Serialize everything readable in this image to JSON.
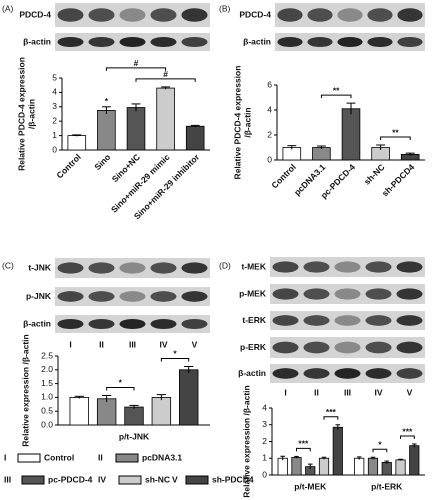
{
  "chart_data": [
    {
      "type": "bar",
      "panel_label": "(A)",
      "blot_labels": [
        "PDCD-4",
        "β-actin"
      ],
      "ylabel": [
        "Relative PDCD-4 expression",
        "/β-actin"
      ],
      "categories": [
        "Control",
        "Sino",
        "Sino+NC",
        "Sino+miR-29 mimic",
        "Sino+miR-29 inhibitor"
      ],
      "values": [
        1.0,
        2.75,
        2.95,
        4.3,
        1.65
      ],
      "errors": [
        0.05,
        0.25,
        0.25,
        0.08,
        0.06
      ],
      "colors": [
        "#ffffff",
        "#888888",
        "#555555",
        "#cccccc",
        "#444444"
      ],
      "ylim": [
        0,
        5
      ],
      "yticks": [
        0,
        1,
        2,
        3,
        4,
        5
      ],
      "annotations": [
        {
          "text": "*",
          "from": 1,
          "to": 1
        },
        {
          "text": "#",
          "from": 2,
          "to": 4
        },
        {
          "text": "#",
          "from": 1,
          "to": 3
        }
      ]
    },
    {
      "type": "bar",
      "panel_label": "(B)",
      "blot_labels": [
        "PDCD-4",
        "β-actin"
      ],
      "ylabel": [
        "Relative PDCD-4 expression",
        "/β-actin"
      ],
      "categories": [
        "Control",
        "pcDNA3.1",
        "pc-PDCD-4",
        "sh-NC",
        "sh-PDCD4"
      ],
      "values": [
        1.0,
        1.0,
        4.1,
        1.0,
        0.45
      ],
      "errors": [
        0.15,
        0.12,
        0.45,
        0.2,
        0.1
      ],
      "colors": [
        "#ffffff",
        "#888888",
        "#555555",
        "#cccccc",
        "#444444"
      ],
      "ylim": [
        0,
        6
      ],
      "yticks": [
        0,
        2,
        4,
        6
      ],
      "annotations": [
        {
          "text": "**",
          "from": 1,
          "to": 2
        },
        {
          "text": "**",
          "from": 3,
          "to": 4
        }
      ]
    },
    {
      "type": "bar",
      "panel_label": "(C)",
      "blot_labels": [
        "t-JNK",
        "p-JNK",
        "β-actin"
      ],
      "lane_labels": [
        "I",
        "II",
        "III",
        "IV",
        "V"
      ],
      "ylabel": [
        "Relative expression /β-actin"
      ],
      "categories": [
        "p/t-JNK"
      ],
      "series": [
        {
          "name": "Control",
          "color": "#ffffff",
          "values": [
            1.0
          ],
          "errors": [
            0.04
          ]
        },
        {
          "name": "pcDNA3.1",
          "color": "#888888",
          "values": [
            0.95
          ],
          "errors": [
            0.12
          ]
        },
        {
          "name": "pc-PDCD-4",
          "color": "#555555",
          "values": [
            0.65
          ],
          "errors": [
            0.06
          ]
        },
        {
          "name": "sh-NC",
          "color": "#cccccc",
          "values": [
            1.0
          ],
          "errors": [
            0.1
          ]
        },
        {
          "name": "sh-PDCD4",
          "color": "#444444",
          "values": [
            2.0
          ],
          "errors": [
            0.12
          ]
        }
      ],
      "legend_numerals": [
        "I",
        "II",
        "III",
        "IV",
        "V"
      ],
      "ylim": [
        0,
        2.5
      ],
      "yticks": [
        {
          "value": 0,
          "label": "0.0"
        },
        0.5,
        {
          "value": 1,
          "label": "1.0"
        },
        1.5,
        {
          "value": 2,
          "label": "2.0"
        },
        2.5
      ],
      "annotations": [
        {
          "text": "*",
          "category": 0,
          "from": 1,
          "to": 2
        },
        {
          "text": "*",
          "category": 0,
          "from": 3,
          "to": 4
        }
      ]
    },
    {
      "type": "bar",
      "panel_label": "(D)",
      "blot_labels": [
        "t-MEK",
        "p-MEK",
        "t-ERK",
        "p-ERK",
        "β-actin"
      ],
      "lane_labels": [
        "I",
        "II",
        "III",
        "IV",
        "V"
      ],
      "ylabel": [
        "Relative expression /β-actin"
      ],
      "categories": [
        "p/t-MEK",
        "p/t-ERK"
      ],
      "series": [
        {
          "color": "#ffffff",
          "values": [
            1.0,
            1.0
          ],
          "errors": [
            0.12,
            0.08
          ]
        },
        {
          "color": "#888888",
          "values": [
            1.05,
            1.0
          ],
          "errors": [
            0.06,
            0.06
          ]
        },
        {
          "color": "#555555",
          "values": [
            0.5,
            0.75
          ],
          "errors": [
            0.15,
            0.08
          ]
        },
        {
          "color": "#cccccc",
          "values": [
            1.0,
            0.9
          ],
          "errors": [
            0.06,
            0.04
          ]
        },
        {
          "color": "#444444",
          "values": [
            2.85,
            1.75
          ],
          "errors": [
            0.15,
            0.1
          ]
        }
      ],
      "ylim": [
        0,
        4
      ],
      "yticks": [
        0,
        1,
        2,
        3,
        4
      ],
      "annotations": [
        {
          "text": "***",
          "category": 0,
          "from": 1,
          "to": 2
        },
        {
          "text": "***",
          "category": 0,
          "from": 3,
          "to": 4
        },
        {
          "text": "*",
          "category": 1,
          "from": 1,
          "to": 2
        },
        {
          "text": "***",
          "category": 1,
          "from": 3,
          "to": 4
        }
      ]
    }
  ]
}
